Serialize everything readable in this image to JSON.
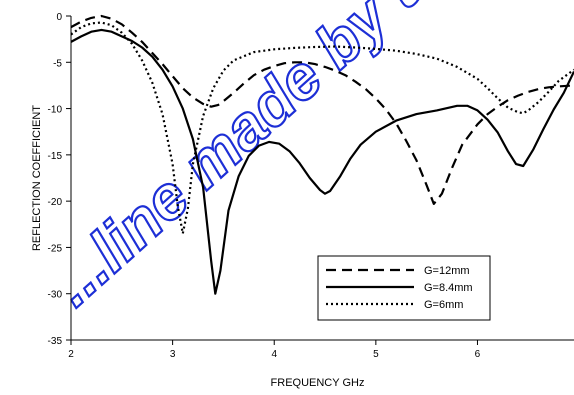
{
  "chart_data": {
    "type": "line",
    "xlabel": "FREQUENCY GHz",
    "ylabel": "REFLECTION COEFFICIENT",
    "xlim": [
      2,
      6.95
    ],
    "ylim": [
      -35,
      0
    ],
    "x_ticks": [
      "2",
      "3",
      "4",
      "5",
      "6"
    ],
    "y_ticks": [
      "0",
      "-5",
      "-10",
      "-15",
      "-20",
      "-25",
      "-30",
      "-35"
    ],
    "legend_position": "lower-right",
    "watermark": "...line made by th...",
    "series": [
      {
        "name": "G=12mm",
        "style": "dashed",
        "color": "#000000",
        "x": [
          2.0,
          2.1,
          2.2,
          2.3,
          2.4,
          2.5,
          2.6,
          2.7,
          2.8,
          2.9,
          3.0,
          3.1,
          3.2,
          3.3,
          3.38,
          3.45,
          3.5,
          3.6,
          3.7,
          3.8,
          3.9,
          4.0,
          4.1,
          4.2,
          4.3,
          4.4,
          4.5,
          4.6,
          4.7,
          4.8,
          4.9,
          5.0,
          5.1,
          5.2,
          5.3,
          5.4,
          5.5,
          5.57,
          5.65,
          5.75,
          5.85,
          6.0,
          6.1,
          6.2,
          6.3,
          6.4,
          6.5,
          6.6,
          6.7,
          6.8,
          6.95
        ],
        "y": [
          -1.2,
          -0.6,
          -0.2,
          0.0,
          -0.3,
          -0.9,
          -1.8,
          -2.8,
          -4.0,
          -5.2,
          -6.5,
          -7.8,
          -8.8,
          -9.5,
          -9.8,
          -9.6,
          -9.2,
          -8.3,
          -7.3,
          -6.4,
          -5.8,
          -5.4,
          -5.1,
          -5.0,
          -5.0,
          -5.2,
          -5.5,
          -5.9,
          -6.4,
          -7.1,
          -7.9,
          -8.9,
          -10.1,
          -11.6,
          -13.5,
          -15.6,
          -18.3,
          -20.3,
          -19.2,
          -16.4,
          -13.9,
          -11.7,
          -10.6,
          -9.8,
          -9.1,
          -8.6,
          -8.2,
          -7.9,
          -7.7,
          -7.6,
          -7.5
        ]
      },
      {
        "name": "G=8.4mm",
        "style": "solid",
        "color": "#000000",
        "x": [
          2.0,
          2.1,
          2.2,
          2.3,
          2.4,
          2.5,
          2.6,
          2.7,
          2.8,
          2.9,
          3.0,
          3.1,
          3.2,
          3.3,
          3.38,
          3.42,
          3.47,
          3.55,
          3.65,
          3.75,
          3.85,
          3.95,
          4.05,
          4.15,
          4.25,
          4.35,
          4.45,
          4.5,
          4.55,
          4.65,
          4.75,
          4.85,
          5.0,
          5.2,
          5.4,
          5.6,
          5.8,
          5.9,
          6.0,
          6.1,
          6.2,
          6.3,
          6.38,
          6.45,
          6.55,
          6.65,
          6.75,
          6.85,
          6.95
        ],
        "y": [
          -2.8,
          -2.2,
          -1.7,
          -1.5,
          -1.7,
          -2.2,
          -2.7,
          -3.4,
          -4.4,
          -5.8,
          -7.6,
          -10.0,
          -13.3,
          -18.5,
          -26.5,
          -30.0,
          -27.5,
          -21.0,
          -17.3,
          -15.1,
          -14.0,
          -13.6,
          -13.8,
          -14.6,
          -15.9,
          -17.5,
          -18.8,
          -19.2,
          -18.9,
          -17.3,
          -15.4,
          -13.9,
          -12.5,
          -11.3,
          -10.6,
          -10.2,
          -9.7,
          -9.7,
          -10.2,
          -11.2,
          -12.6,
          -14.6,
          -16.0,
          -16.2,
          -14.4,
          -12.2,
          -10.1,
          -8.3,
          -6.0
        ]
      },
      {
        "name": "G=6mm",
        "style": "dotted",
        "color": "#000000",
        "x": [
          2.0,
          2.1,
          2.2,
          2.3,
          2.4,
          2.5,
          2.6,
          2.7,
          2.8,
          2.9,
          3.0,
          3.05,
          3.1,
          3.15,
          3.2,
          3.3,
          3.4,
          3.5,
          3.6,
          3.8,
          4.0,
          4.2,
          4.4,
          4.6,
          4.8,
          5.0,
          5.2,
          5.4,
          5.6,
          5.8,
          6.0,
          6.1,
          6.2,
          6.3,
          6.4,
          6.45,
          6.5,
          6.6,
          6.7,
          6.8,
          6.95
        ],
        "y": [
          -2.0,
          -1.2,
          -0.8,
          -0.7,
          -1.0,
          -1.8,
          -3.0,
          -4.8,
          -7.2,
          -10.6,
          -16.0,
          -20.5,
          -23.5,
          -20.8,
          -16.0,
          -10.8,
          -7.8,
          -5.9,
          -4.8,
          -3.9,
          -3.6,
          -3.45,
          -3.35,
          -3.3,
          -3.4,
          -3.55,
          -3.75,
          -4.1,
          -4.6,
          -5.5,
          -6.8,
          -7.8,
          -8.9,
          -9.9,
          -10.4,
          -10.5,
          -10.2,
          -9.3,
          -8.2,
          -7.0,
          -5.8
        ]
      }
    ]
  }
}
